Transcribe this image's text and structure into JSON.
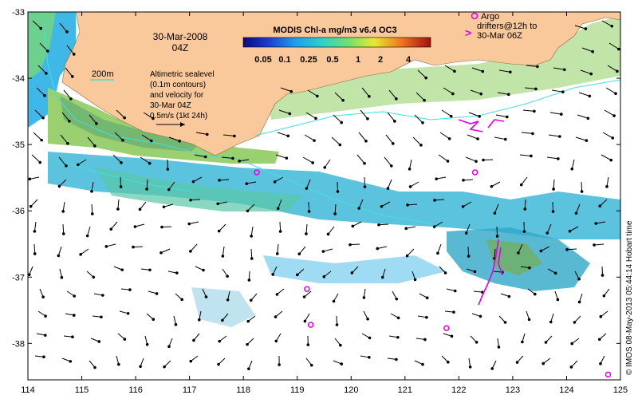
{
  "map": {
    "date_line1": "30-Mar-2008",
    "date_line2": "04Z",
    "depth_contour_label": "200m",
    "sealevel_lines": [
      "Altimetric sealevel",
      "(0.1m contours)",
      "and velocity for",
      "30-Mar 04Z",
      "0.5m/s (1kt 24h)"
    ],
    "colorbar": {
      "title": "MODIS Chl-a mg/m3 v6.4 OC3",
      "labels": [
        "0.05",
        "0.1",
        "0.25",
        "0.5",
        "1",
        "2",
        "4"
      ]
    },
    "argo_legend": {
      "line1": "Argo",
      "line2": "drifters@12h to",
      "line3": "30-Mar 06Z"
    },
    "credit": "© IMOS 08-May-2013 05:44:14 Hobart time",
    "x_ticks": [
      "114",
      "115",
      "116",
      "117",
      "118",
      "119",
      "120",
      "121",
      "122",
      "123",
      "124",
      "125"
    ],
    "y_ticks": [
      "-33",
      "-34",
      "-35",
      "-36",
      "-37",
      "-38"
    ],
    "colors": {
      "land": "#f9c89b",
      "ocean": "#ffffff",
      "argo": "#e000e0",
      "contour": "#40e0e0"
    },
    "argo_floats": [
      {
        "lon": 118.25,
        "lat": -35.42
      },
      {
        "lon": 119.18,
        "lat": -37.18
      },
      {
        "lon": 119.25,
        "lat": -37.72
      },
      {
        "lon": 121.77,
        "lat": -37.77
      },
      {
        "lon": 122.3,
        "lat": -35.42
      },
      {
        "lon": 124.77,
        "lat": -38.47
      }
    ]
  }
}
